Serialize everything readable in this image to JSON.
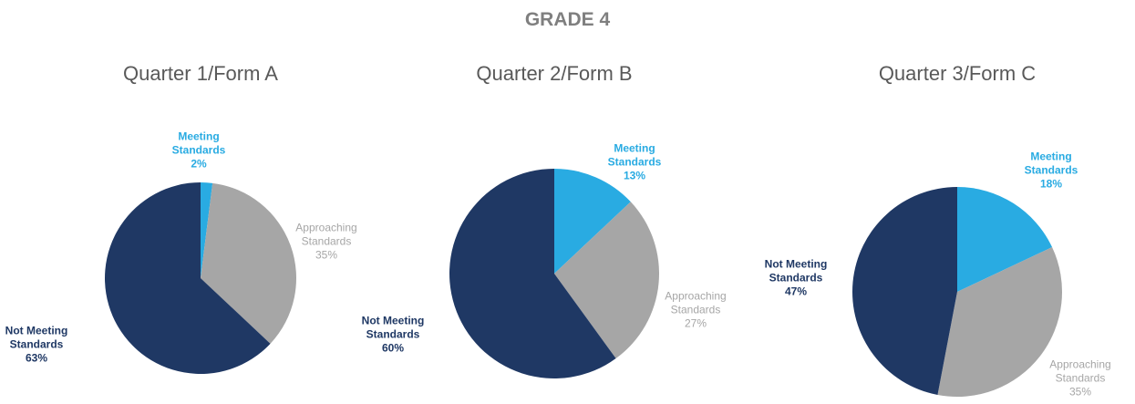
{
  "title": "GRADE 4",
  "chart_data": [
    {
      "type": "pie",
      "title": "Quarter 1/Form A",
      "categories": [
        "Meeting Standards",
        "Approaching Standards",
        "Not Meeting Standards"
      ],
      "values": [
        2,
        35,
        63
      ],
      "value_labels": [
        "2%",
        "35%",
        "63%"
      ],
      "colors": [
        "#29abe2",
        "#a6a6a6",
        "#1f3864"
      ]
    },
    {
      "type": "pie",
      "title": "Quarter 2/Form B",
      "categories": [
        "Meeting Standards",
        "Approaching Standards",
        "Not Meeting Standards"
      ],
      "values": [
        13,
        27,
        60
      ],
      "value_labels": [
        "13%",
        "27%",
        "60%"
      ],
      "colors": [
        "#29abe2",
        "#a6a6a6",
        "#1f3864"
      ]
    },
    {
      "type": "pie",
      "title": "Quarter 3/Form C",
      "categories": [
        "Meeting Standards",
        "Approaching Standards",
        "Not Meeting Standards"
      ],
      "values": [
        18,
        35,
        47
      ],
      "value_labels": [
        "18%",
        "35%",
        "47%"
      ],
      "colors": [
        "#29abe2",
        "#a6a6a6",
        "#1f3864"
      ]
    }
  ]
}
